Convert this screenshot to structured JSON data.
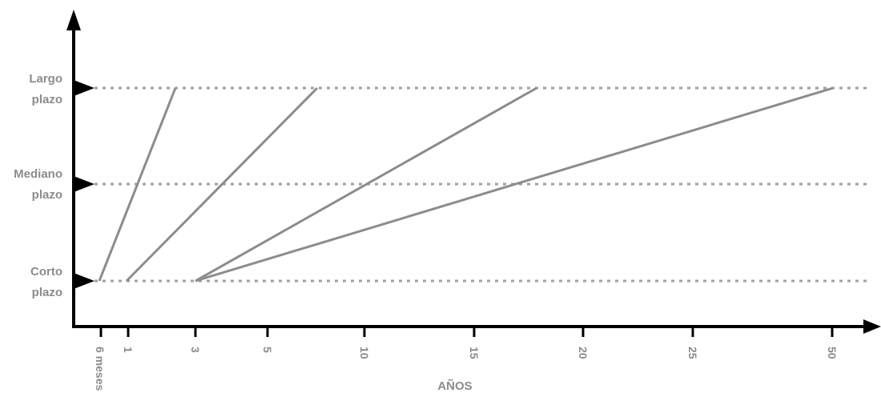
{
  "diagram": {
    "x_axis_title": "AÑOS",
    "x_ticks": [
      "6 meses",
      "1",
      "3",
      "5",
      "10",
      "15",
      "20",
      "25",
      "50"
    ],
    "levels": [
      {
        "id": "largo",
        "lines": [
          "Largo",
          "plazo"
        ]
      },
      {
        "id": "mediano",
        "lines": [
          "Mediano",
          "plazo"
        ]
      },
      {
        "id": "corto",
        "lines": [
          "Corto",
          "plazo"
        ]
      }
    ],
    "segments": [
      {
        "from": "6 meses",
        "to_year": 3.5
      },
      {
        "from": "1",
        "to_year": 7.5
      },
      {
        "from": "3",
        "to_year": 17.5
      },
      {
        "from": "3",
        "to_year": 50
      }
    ],
    "colors": {
      "axis": "#000000",
      "line": "#8c8c8c",
      "dotted": "#a0a0a0",
      "text": "#8c8c8c"
    }
  }
}
